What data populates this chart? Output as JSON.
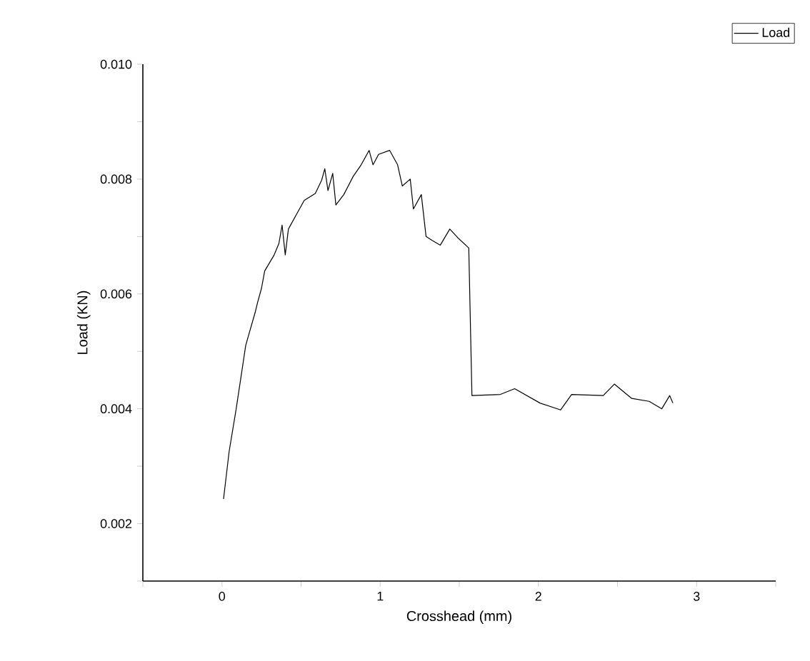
{
  "chart_data": {
    "type": "line",
    "xlabel": "Crosshead (mm)",
    "ylabel": "Load (KN)",
    "xlim": [
      -0.5,
      3.5
    ],
    "ylim": [
      0.001,
      0.01
    ],
    "xticks": [
      {
        "value": -0.5,
        "label": null
      },
      0,
      {
        "value": 0.5,
        "label": null
      },
      1,
      {
        "value": 1.5,
        "label": null
      },
      2,
      {
        "value": 2.5,
        "label": null
      },
      3,
      {
        "value": 3.5,
        "label": null
      }
    ],
    "yticks": [
      {
        "value": 0.001,
        "label": null
      },
      0.002,
      {
        "value": 0.003,
        "label": null
      },
      0.004,
      {
        "value": 0.005,
        "label": null
      },
      0.006,
      {
        "value": 0.007,
        "label": null
      },
      0.008,
      {
        "value": 0.009,
        "label": null
      },
      {
        "value": 0.01,
        "label": "0.010"
      }
    ],
    "legend": "top right",
    "grid": false,
    "marker": "none",
    "line_style": "solid",
    "series": [
      {
        "name": "Load",
        "color": "#000000",
        "x": [
          0.01,
          0.045,
          0.09,
          0.15,
          0.16,
          0.21,
          0.225,
          0.25,
          0.27,
          0.33,
          0.36,
          0.38,
          0.4,
          0.42,
          0.48,
          0.52,
          0.59,
          0.63,
          0.65,
          0.67,
          0.7,
          0.72,
          0.77,
          0.83,
          0.88,
          0.93,
          0.955,
          0.99,
          1.06,
          1.11,
          1.14,
          1.19,
          1.21,
          1.26,
          1.29,
          1.33,
          1.38,
          1.44,
          1.49,
          1.56,
          1.58,
          1.76,
          1.85,
          2.01,
          2.14,
          2.21,
          2.41,
          2.48,
          2.59,
          2.7,
          2.78,
          2.83,
          2.85
        ],
        "values": [
          0.00243,
          0.00325,
          0.004,
          0.0051,
          0.0052,
          0.00568,
          0.00585,
          0.0061,
          0.0064,
          0.00668,
          0.00688,
          0.0072,
          0.00668,
          0.00713,
          0.00743,
          0.00763,
          0.00775,
          0.00798,
          0.00818,
          0.0078,
          0.0081,
          0.00755,
          0.00773,
          0.00805,
          0.00825,
          0.0085,
          0.00825,
          0.00843,
          0.0085,
          0.00825,
          0.00788,
          0.008,
          0.00748,
          0.00773,
          0.007,
          0.00693,
          0.00685,
          0.00713,
          0.00698,
          0.0068,
          0.00423,
          0.00425,
          0.00435,
          0.0041,
          0.00398,
          0.00425,
          0.00423,
          0.00443,
          0.00418,
          0.00413,
          0.004,
          0.00423,
          0.0041
        ]
      }
    ]
  }
}
